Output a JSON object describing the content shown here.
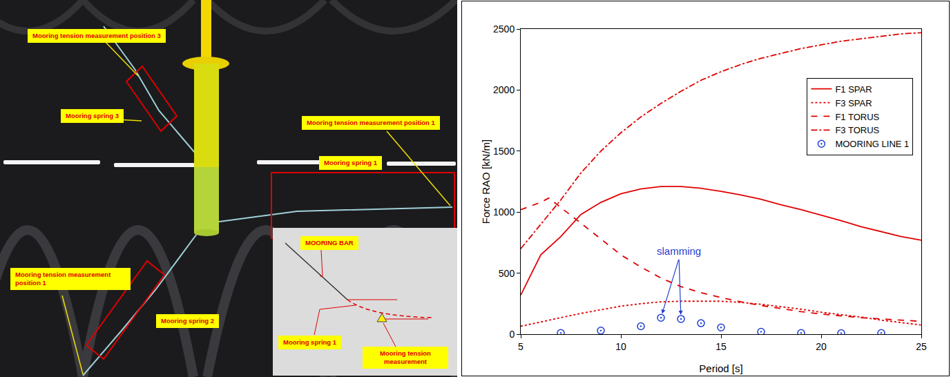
{
  "photo": {
    "labels": [
      "Mooring tension measurement position 3",
      "Mooring spring 3",
      "Mooring tension measurement position 1",
      "Mooring spring 1",
      "Mooring tension measurement position 1",
      "Mooring spring 2"
    ],
    "inset_labels": [
      "MOORING BAR",
      "Mooring spring 1",
      "Mooring tension measurement"
    ]
  },
  "chart_data": {
    "type": "line",
    "x_label": "Period [s]",
    "y_label": "Force RAO [kN/m]",
    "xlim": [
      5,
      25
    ],
    "xticks": [
      5,
      10,
      15,
      20,
      25
    ],
    "ylim": [
      0,
      2500
    ],
    "yticks": [
      0,
      500,
      1000,
      1500,
      2000,
      2500
    ],
    "grid": false,
    "legend": "upper right",
    "x": [
      5,
      6,
      7,
      8,
      9,
      10,
      11,
      12,
      13,
      14,
      15,
      16,
      17,
      18,
      19,
      20,
      21,
      22,
      23,
      24,
      25
    ],
    "series": [
      {
        "name": "F1 SPAR",
        "color": "#e00000",
        "line_style": "solid",
        "values": [
          320,
          650,
          800,
          980,
          1080,
          1150,
          1190,
          1210,
          1210,
          1195,
          1170,
          1140,
          1105,
          1060,
          1020,
          975,
          930,
          880,
          840,
          800,
          770
        ]
      },
      {
        "name": "F3 SPAR",
        "color": "#e00000",
        "line_style": "dotted",
        "values": [
          65,
          100,
          135,
          170,
          200,
          230,
          250,
          265,
          270,
          272,
          270,
          260,
          245,
          225,
          205,
          180,
          160,
          140,
          115,
          95,
          75
        ]
      },
      {
        "name": "F1 TORUS",
        "color": "#e00000",
        "line_style": "dashed",
        "x": [
          5,
          6,
          6.4,
          7,
          8,
          9,
          10,
          11,
          12,
          13,
          14,
          15,
          16,
          17,
          18,
          19,
          20,
          21,
          22,
          23,
          24,
          25
        ],
        "values": [
          1020,
          1080,
          1115,
          1040,
          910,
          780,
          650,
          550,
          460,
          390,
          340,
          300,
          265,
          235,
          210,
          185,
          165,
          150,
          135,
          125,
          115,
          105
        ]
      },
      {
        "name": "F3 TORUS",
        "color": "#e00000",
        "line_style": "dashdot",
        "values": [
          700,
          900,
          1100,
          1320,
          1500,
          1650,
          1780,
          1890,
          1990,
          2080,
          2150,
          2210,
          2260,
          2300,
          2340,
          2370,
          2400,
          2420,
          2440,
          2460,
          2470
        ]
      },
      {
        "name": "MOORING LINE 1",
        "color": "#1f3fd0",
        "type": "scatter",
        "marker": "circle-dot",
        "x": [
          7,
          9,
          11,
          12,
          13,
          14,
          15,
          17,
          19,
          21,
          23
        ],
        "values": [
          10,
          30,
          65,
          135,
          125,
          90,
          55,
          20,
          10,
          8,
          10
        ]
      }
    ],
    "annotations": [
      {
        "text": "slamming",
        "x": 12.9,
        "y": 620,
        "arrows_to": [
          {
            "x": 12,
            "y": 135
          },
          {
            "x": 13,
            "y": 125
          }
        ]
      }
    ]
  }
}
